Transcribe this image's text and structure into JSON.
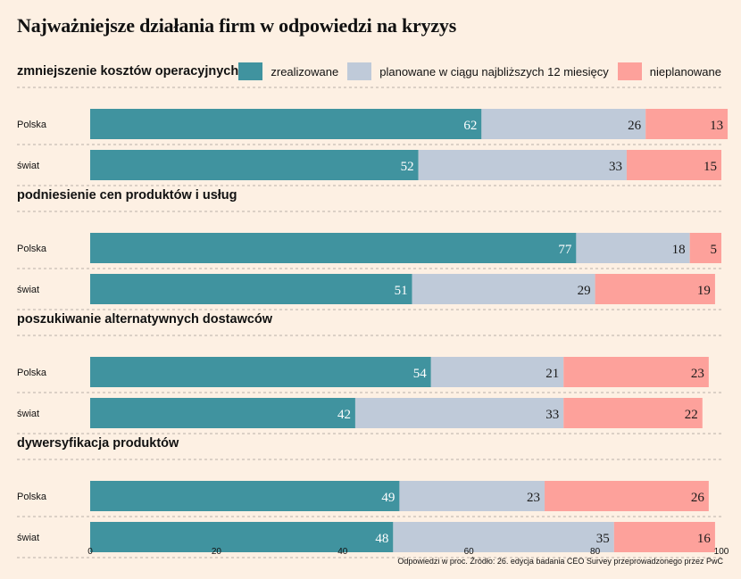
{
  "title": "Najważniejsze działania firm w odpowiedzi na kryzys",
  "footer": "Odpowiedzi w proc. Źródło: 26. edycja badania CEO Survey przeprowadzonego przez PwC",
  "colors": {
    "zrealizowane": "#40939f",
    "planowane": "#bfcad9",
    "nieplanowane": "#fda19b",
    "background": "#fdf0e3"
  },
  "legend": [
    {
      "key": "zrealizowane",
      "label": "zrealizowane"
    },
    {
      "key": "planowane",
      "label": "planowane w ciągu najbliższych 12 miesięcy"
    },
    {
      "key": "nieplanowane",
      "label": "nieplanowane"
    }
  ],
  "chart_data": {
    "type": "bar",
    "orientation": "horizontal",
    "stacked": true,
    "xlim": [
      0,
      100
    ],
    "xticks": [
      0,
      20,
      40,
      60,
      80,
      100
    ],
    "legend_position": "top-right",
    "series": [
      {
        "name": "zrealizowane",
        "key": "zrealizowane"
      },
      {
        "name": "planowane w ciągu najbliższych 12 miesięcy",
        "key": "planowane"
      },
      {
        "name": "nieplanowane",
        "key": "nieplanowane"
      }
    ],
    "groups": [
      {
        "title": "zmniejszenie kosztów operacyjnych",
        "rows": [
          {
            "label": "Polska",
            "values": [
              62,
              26,
              13
            ]
          },
          {
            "label": "świat",
            "values": [
              52,
              33,
              15
            ]
          }
        ]
      },
      {
        "title": "podniesienie cen produktów i usług",
        "rows": [
          {
            "label": "Polska",
            "values": [
              77,
              18,
              5
            ]
          },
          {
            "label": "świat",
            "values": [
              51,
              29,
              19
            ]
          }
        ]
      },
      {
        "title": "poszukiwanie alternatywnych dostawców",
        "rows": [
          {
            "label": "Polska",
            "values": [
              54,
              21,
              23
            ]
          },
          {
            "label": "świat",
            "values": [
              42,
              33,
              22
            ]
          }
        ]
      },
      {
        "title": "dywersyfikacja produktów",
        "rows": [
          {
            "label": "Polska",
            "values": [
              49,
              23,
              26
            ]
          },
          {
            "label": "świat",
            "values": [
              48,
              35,
              16
            ]
          }
        ]
      }
    ]
  }
}
